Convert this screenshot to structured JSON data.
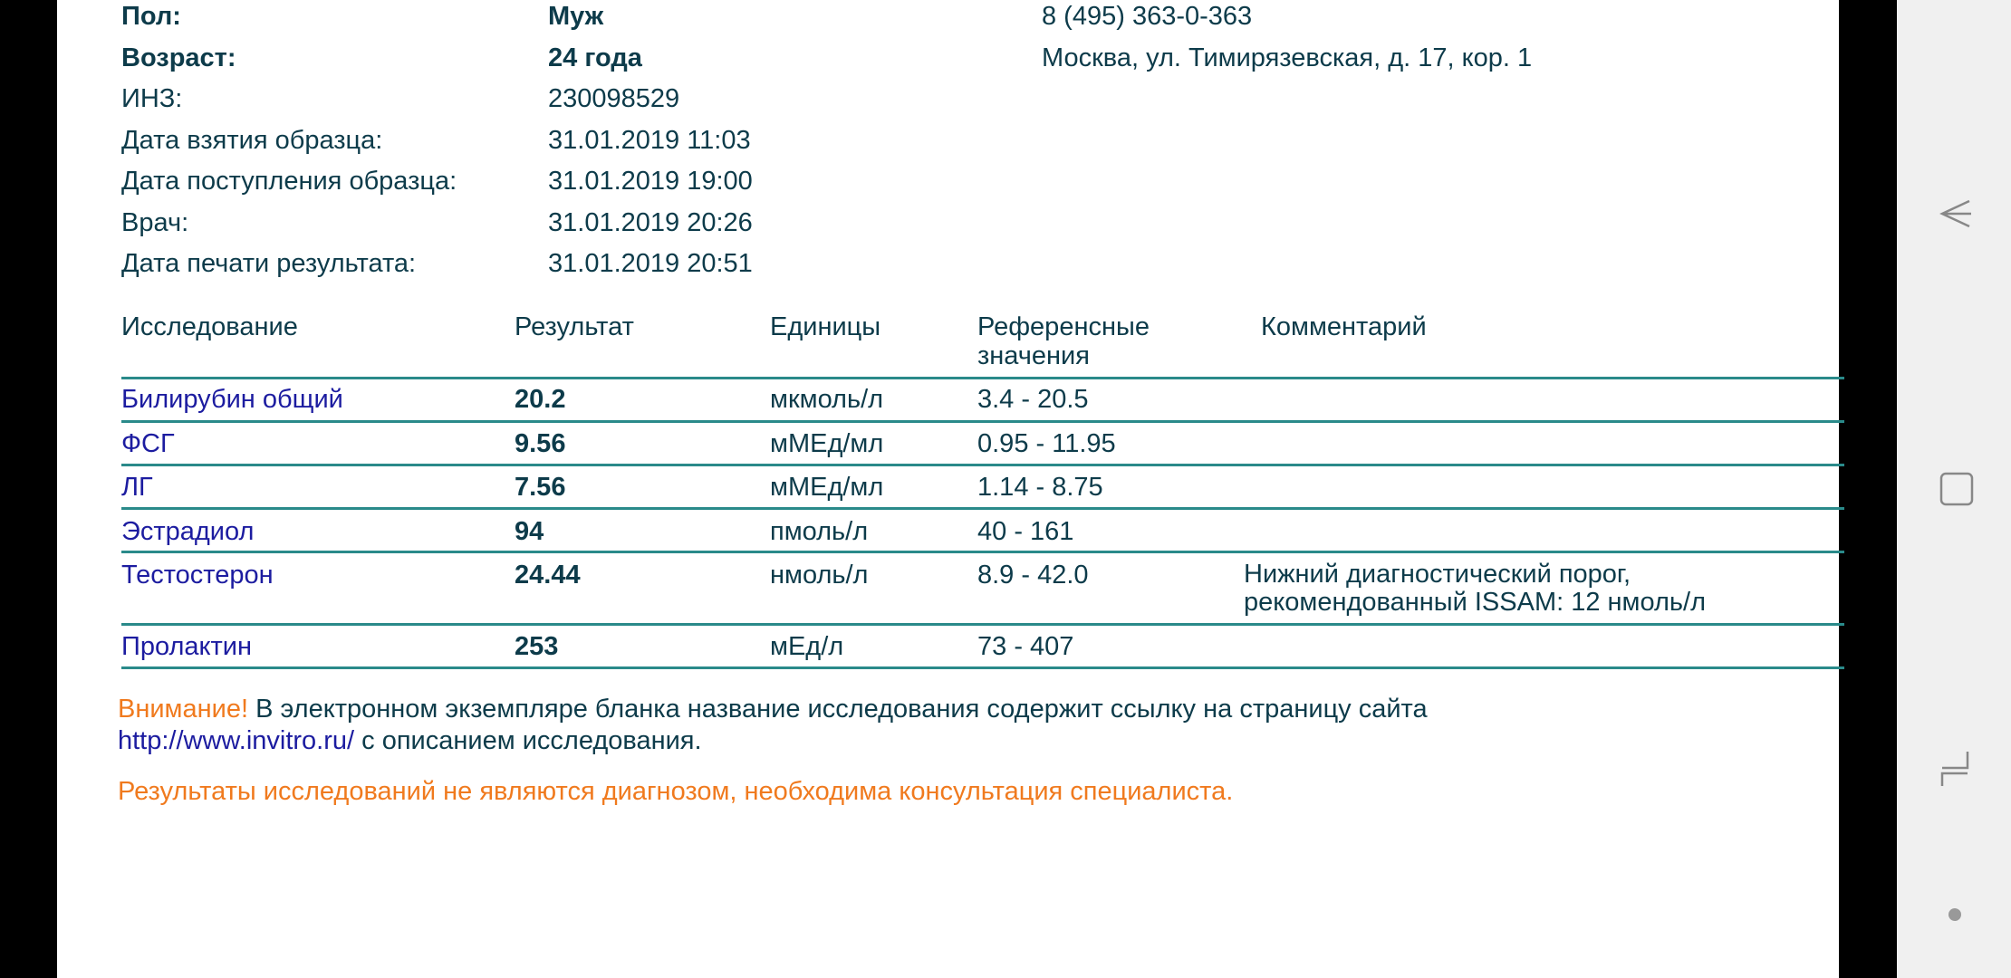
{
  "patient": [
    {
      "label": "Пол:",
      "value": "Муж",
      "bold": true
    },
    {
      "label": "Возраст:",
      "value": "24 года",
      "bold": true
    },
    {
      "label": "ИНЗ:",
      "value": "230098529"
    },
    {
      "label": "Дата взятия образца:",
      "value": "31.01.2019 11:03"
    },
    {
      "label": "Дата поступления образца:",
      "value": "31.01.2019 19:00"
    },
    {
      "label": "Врач:",
      "value": "31.01.2019 20:26"
    },
    {
      "label": "Дата печати результата:",
      "value": "31.01.2019 20:51"
    }
  ],
  "lab": {
    "phone": "8 (495) 363-0-363",
    "address": "Москва, ул. Тимирязевская, д. 17, кор. 1"
  },
  "table": {
    "headers": {
      "test": "Исследование",
      "result": "Результат",
      "units": "Единицы",
      "ref_line1": "Референсные",
      "ref_line2": "значения",
      "comment": "Комментарий"
    },
    "rows": [
      {
        "test": "Билирубин общий",
        "result": "20.2",
        "units": "мкмоль/л",
        "ref": "3.4 - 20.5",
        "comment1": "",
        "comment2": ""
      },
      {
        "test": "ФСГ",
        "result": "9.56",
        "units": "мМЕд/мл",
        "ref": "0.95 - 11.95",
        "comment1": "",
        "comment2": ""
      },
      {
        "test": "ЛГ",
        "result": "7.56",
        "units": "мМЕд/мл",
        "ref": "1.14 - 8.75",
        "comment1": "",
        "comment2": ""
      },
      {
        "test": "Эстрадиол",
        "result": "94",
        "units": "пмоль/л",
        "ref": "40 - 161",
        "comment1": "",
        "comment2": ""
      },
      {
        "test": "Тестостерон",
        "result": "24.44",
        "units": "нмоль/л",
        "ref": "8.9 - 42.0",
        "comment1": "Нижний диагностический порог,",
        "comment2": "рекомендованный ISSAM: 12 нмоль/л"
      },
      {
        "test": "Пролактин",
        "result": "253",
        "units": "мЕд/л",
        "ref": "73 - 407",
        "comment1": "",
        "comment2": ""
      }
    ]
  },
  "notes": {
    "attention": "Внимание!",
    "attention_text": " В электронном экземпляре бланка название исследования содержит ссылку на страницу сайта",
    "url": "http://www.invitro.ru/",
    "url_suffix": " с описанием исследования.",
    "disclaimer": "Результаты исследований не являются диагнозом, необходима консультация специалиста."
  },
  "colors": {
    "text": "#0d3b4a",
    "link": "#1c1ca0",
    "warning": "#f07a1e",
    "rule": "#2a8a8a"
  },
  "navbar": {
    "icons": [
      "back-icon",
      "home-icon",
      "recents-icon",
      "dot-icon"
    ]
  }
}
